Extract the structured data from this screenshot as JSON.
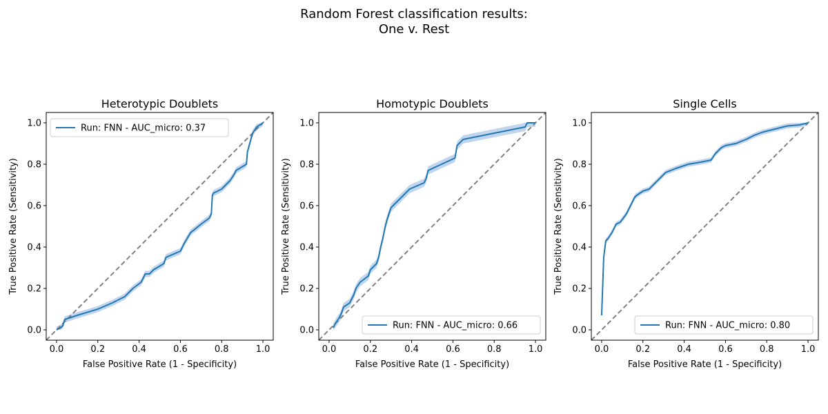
{
  "figure": {
    "title_line1": "Random Forest classification results:",
    "title_line2": "One v. Rest"
  },
  "style": {
    "line_color": "#1f77b4",
    "band_color": "#aec7e8",
    "diagonal_color": "#808080"
  },
  "chart_data": [
    {
      "type": "line",
      "title": "Heterotypic Doublets",
      "xlabel": "False Positive Rate (1 - Specificity)",
      "ylabel": "True Positive Rate (Sensitivity)",
      "xlim": [
        -0.05,
        1.05
      ],
      "ylim": [
        -0.05,
        1.05
      ],
      "xticks": [
        "0.0",
        "0.2",
        "0.4",
        "0.6",
        "0.8",
        "1.0"
      ],
      "yticks": [
        "0.0",
        "0.2",
        "0.4",
        "0.6",
        "0.8",
        "1.0"
      ],
      "legend_loc": "upper-left",
      "series": [
        {
          "name": "Run: FNN - AUC_micro: 0.37",
          "x": [
            0.0,
            0.02,
            0.03,
            0.04,
            0.1,
            0.2,
            0.27,
            0.33,
            0.37,
            0.41,
            0.43,
            0.45,
            0.47,
            0.52,
            0.53,
            0.6,
            0.61,
            0.62,
            0.65,
            0.7,
            0.74,
            0.75,
            0.755,
            0.76,
            0.8,
            0.84,
            0.86,
            0.87,
            0.92,
            0.925,
            0.95,
            0.97,
            1.0
          ],
          "y": [
            0.0,
            0.01,
            0.02,
            0.05,
            0.07,
            0.1,
            0.13,
            0.16,
            0.2,
            0.23,
            0.27,
            0.27,
            0.29,
            0.32,
            0.35,
            0.38,
            0.4,
            0.42,
            0.47,
            0.51,
            0.54,
            0.56,
            0.65,
            0.66,
            0.68,
            0.72,
            0.75,
            0.77,
            0.8,
            0.86,
            0.95,
            0.98,
            1.0
          ],
          "band": 0.015
        }
      ]
    },
    {
      "type": "line",
      "title": "Homotypic Doublets",
      "xlabel": "False Positive Rate (1 - Specificity)",
      "ylabel": "True Positive Rate (Sensitivity)",
      "xlim": [
        -0.05,
        1.05
      ],
      "ylim": [
        -0.05,
        1.05
      ],
      "xticks": [
        "0.0",
        "0.2",
        "0.4",
        "0.6",
        "0.8",
        "1.0"
      ],
      "yticks": [
        "0.0",
        "0.2",
        "0.4",
        "0.6",
        "0.8",
        "1.0"
      ],
      "legend_loc": "lower-right",
      "series": [
        {
          "name": "Run: FNN - AUC_micro: 0.66",
          "x": [
            0.02,
            0.03,
            0.05,
            0.06,
            0.07,
            0.1,
            0.11,
            0.12,
            0.13,
            0.15,
            0.19,
            0.2,
            0.23,
            0.24,
            0.25,
            0.26,
            0.27,
            0.28,
            0.29,
            0.3,
            0.33,
            0.35,
            0.38,
            0.39,
            0.46,
            0.47,
            0.48,
            0.61,
            0.62,
            0.64,
            0.65,
            0.95,
            0.96,
            1.0
          ],
          "y": [
            0.01,
            0.03,
            0.06,
            0.08,
            0.11,
            0.13,
            0.15,
            0.17,
            0.2,
            0.23,
            0.26,
            0.29,
            0.32,
            0.35,
            0.4,
            0.44,
            0.49,
            0.53,
            0.56,
            0.59,
            0.62,
            0.64,
            0.67,
            0.68,
            0.71,
            0.73,
            0.77,
            0.83,
            0.89,
            0.91,
            0.92,
            0.98,
            1.0,
            1.0
          ],
          "band": 0.02
        }
      ]
    },
    {
      "type": "line",
      "title": "Single Cells",
      "xlabel": "False Positive Rate (1 - Specificity)",
      "ylabel": "True Positive Rate (Sensitivity)",
      "xlim": [
        -0.05,
        1.05
      ],
      "ylim": [
        -0.05,
        1.05
      ],
      "xticks": [
        "0.0",
        "0.2",
        "0.4",
        "0.6",
        "0.8",
        "1.0"
      ],
      "yticks": [
        "0.0",
        "0.2",
        "0.4",
        "0.6",
        "0.8",
        "1.0"
      ],
      "legend_loc": "lower-right",
      "series": [
        {
          "name": "Run: FNN - AUC_micro: 0.80",
          "x": [
            0.0,
            0.01,
            0.02,
            0.03,
            0.05,
            0.07,
            0.09,
            0.12,
            0.14,
            0.16,
            0.17,
            0.2,
            0.23,
            0.25,
            0.28,
            0.31,
            0.36,
            0.42,
            0.48,
            0.53,
            0.55,
            0.58,
            0.6,
            0.65,
            0.7,
            0.74,
            0.78,
            0.84,
            0.9,
            0.96,
            1.0
          ],
          "y": [
            0.07,
            0.35,
            0.43,
            0.44,
            0.47,
            0.51,
            0.52,
            0.56,
            0.6,
            0.64,
            0.65,
            0.67,
            0.68,
            0.7,
            0.73,
            0.76,
            0.78,
            0.8,
            0.81,
            0.82,
            0.85,
            0.88,
            0.89,
            0.9,
            0.92,
            0.94,
            0.955,
            0.97,
            0.985,
            0.99,
            1.0
          ],
          "band": 0.012
        }
      ]
    }
  ]
}
